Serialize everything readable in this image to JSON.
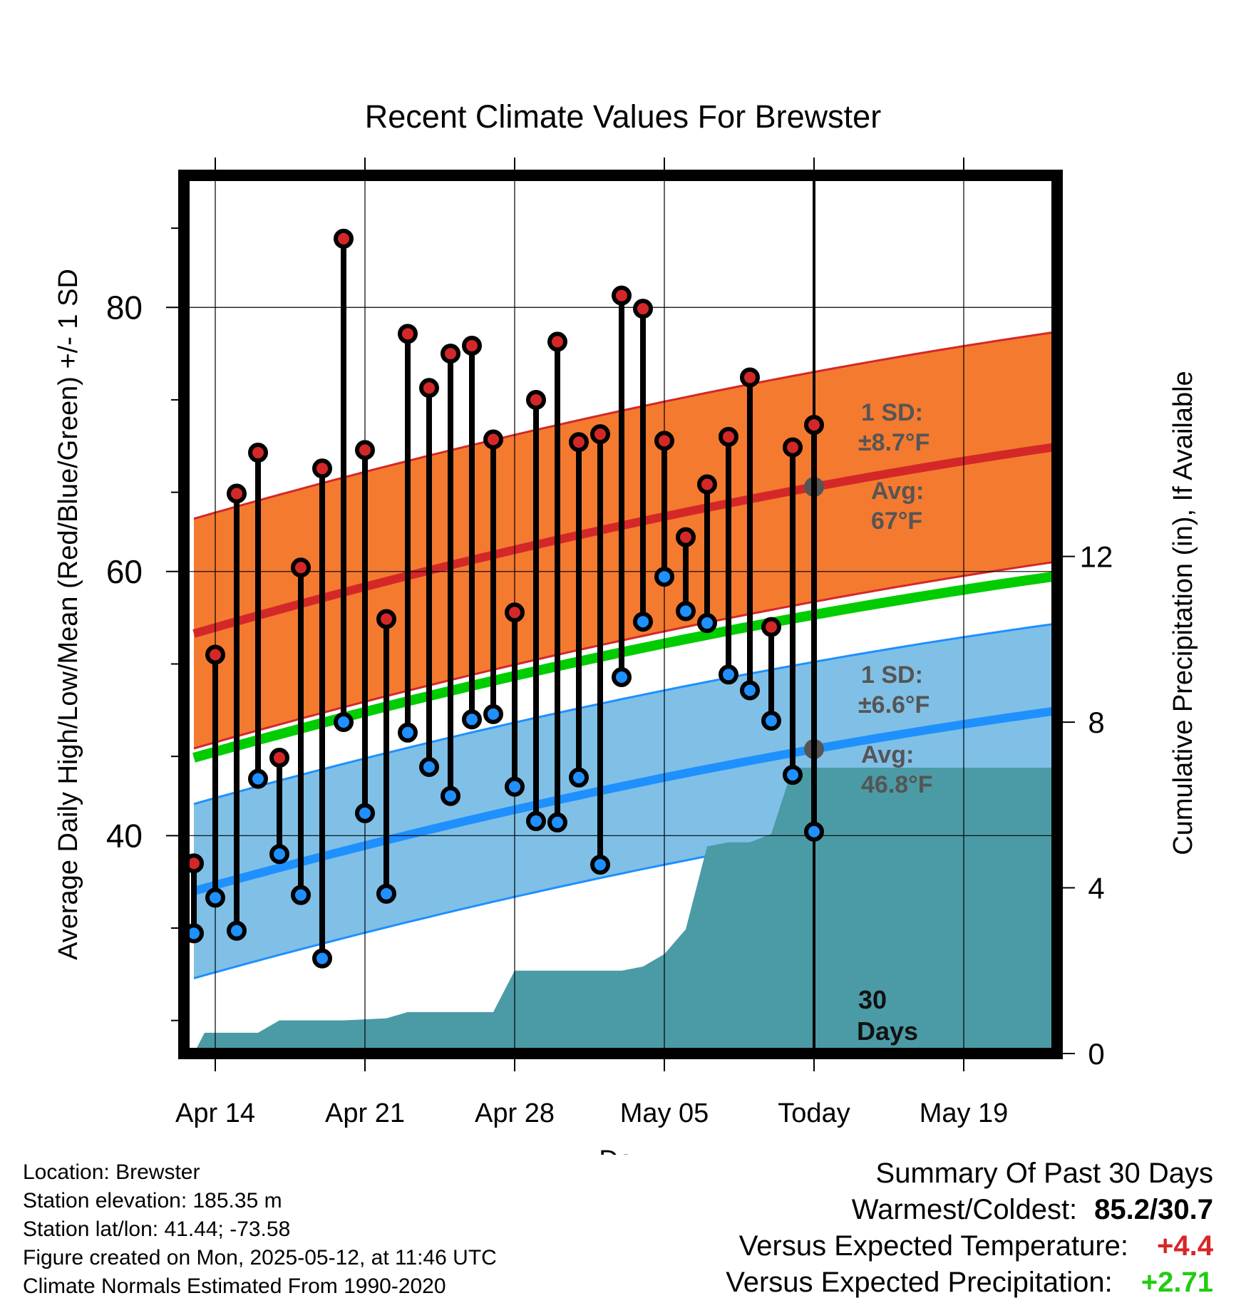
{
  "chart_data": {
    "type": "line",
    "title": "Recent Climate Values For Brewster",
    "xlabel": "Day",
    "ylabel": "Average Daily High/Low/Mean (Red/Blue/Green) +/- 1 SD",
    "y2label": "Cumulative Precipitation (in), If Available",
    "x_tick_labels": [
      "Apr 14",
      "Apr 21",
      "Apr 28",
      "May 05",
      "Today",
      "May 19"
    ],
    "y_ticks": [
      40,
      60,
      80
    ],
    "y2_ticks": [
      0,
      4,
      8,
      12
    ],
    "ylim": [
      23.5,
      90
    ],
    "y2lim": [
      0,
      21.2
    ],
    "x_range_days": [
      "Apr 11",
      "May 22"
    ],
    "today": "May 12",
    "grid": true,
    "colors": {
      "high_band": "#f47a30",
      "high_line": "#d42828",
      "low_band": "#80c0e6",
      "low_line": "#1e90ff",
      "mean_line": "#00cc00",
      "precip": "#4a9ba6",
      "high_marker": "#d42828",
      "low_marker": "#1e90ff"
    },
    "normals": {
      "high_avg": [
        [
          0,
          55.3
        ],
        [
          41,
          69.6
        ]
      ],
      "high_sd": 8.7,
      "low_avg": [
        [
          0,
          35.8
        ],
        [
          41,
          49.6
        ]
      ],
      "low_sd": 6.6,
      "mean_avg": [
        [
          0,
          45.9
        ],
        [
          41,
          59.8
        ]
      ]
    },
    "daily": [
      {
        "day": 1,
        "high": 37.9,
        "low": 32.6
      },
      {
        "day": 2,
        "high": 53.7,
        "low": 35.3
      },
      {
        "day": 3,
        "high": 65.9,
        "low": 32.8
      },
      {
        "day": 4,
        "high": 69.0,
        "low": 44.3
      },
      {
        "day": 5,
        "high": 45.9,
        "low": 38.6
      },
      {
        "day": 6,
        "high": 60.3,
        "low": 35.5
      },
      {
        "day": 7,
        "high": 67.8,
        "low": 30.7
      },
      {
        "day": 8,
        "high": 85.2,
        "low": 48.6
      },
      {
        "day": 9,
        "high": 69.2,
        "low": 41.7
      },
      {
        "day": 10,
        "high": 56.4,
        "low": 35.6
      },
      {
        "day": 11,
        "high": 78.0,
        "low": 47.8
      },
      {
        "day": 12,
        "high": 73.9,
        "low": 45.2
      },
      {
        "day": 13,
        "high": 76.5,
        "low": 43.0
      },
      {
        "day": 14,
        "high": 77.1,
        "low": 48.8
      },
      {
        "day": 15,
        "high": 70.0,
        "low": 49.2
      },
      {
        "day": 16,
        "high": 56.9,
        "low": 43.7
      },
      {
        "day": 17,
        "high": 73.0,
        "low": 41.1
      },
      {
        "day": 18,
        "high": 77.4,
        "low": 41.0
      },
      {
        "day": 19,
        "high": 69.8,
        "low": 44.4
      },
      {
        "day": 20,
        "high": 70.4,
        "low": 37.8
      },
      {
        "day": 21,
        "high": 80.9,
        "low": 52.0
      },
      {
        "day": 22,
        "high": 79.9,
        "low": 56.2
      },
      {
        "day": 23,
        "high": 69.9,
        "low": 59.6
      },
      {
        "day": 24,
        "high": 62.6,
        "low": 57.0
      },
      {
        "day": 25,
        "high": 66.6,
        "low": 56.1
      },
      {
        "day": 26,
        "high": 70.2,
        "low": 52.2
      },
      {
        "day": 27,
        "high": 74.7,
        "low": 51.0
      },
      {
        "day": 28,
        "high": 55.8,
        "low": 48.7
      },
      {
        "day": 29,
        "high": 69.4,
        "low": 44.6
      },
      {
        "day": 30,
        "high": 71.1,
        "low": 40.3
      }
    ],
    "precip_cumulative": [
      [
        0,
        0.0
      ],
      [
        0.5,
        0.5
      ],
      [
        3,
        0.5
      ],
      [
        4,
        0.8
      ],
      [
        7,
        0.8
      ],
      [
        9,
        0.85
      ],
      [
        10,
        1.0
      ],
      [
        14,
        1.0
      ],
      [
        15,
        2.0
      ],
      [
        20,
        2.0
      ],
      [
        21,
        2.1
      ],
      [
        22,
        2.4
      ],
      [
        23,
        3.0
      ],
      [
        24,
        5.0
      ],
      [
        25,
        5.1
      ],
      [
        26,
        5.1
      ],
      [
        27,
        5.3
      ],
      [
        28,
        6.9
      ],
      [
        41,
        6.9
      ]
    ],
    "annotations": {
      "high_sd": "1 SD:",
      "high_sd_value": "±8.7°F",
      "high_avg": "Avg:",
      "high_avg_value": "67°F",
      "low_sd": "1 SD:",
      "low_sd_value": "±6.6°F",
      "low_avg": "Avg:",
      "low_avg_value": "46.8°F",
      "days_number": "30",
      "days_word": "Days"
    }
  },
  "station_info": {
    "location": "Location: Brewster",
    "elevation": "Station elevation: 185.35 m",
    "latlon": "Station lat/lon: 41.44; -73.58",
    "created": "Figure created on Mon, 2025-05-12, at 11:46 UTC",
    "normals": "Climate Normals Estimated From 1990-2020"
  },
  "summary": {
    "title": "Summary Of Past 30 Days",
    "warmest_label": "Warmest/Coldest:",
    "warmest_value": "85.2/30.7",
    "temp_label": "Versus Expected Temperature:",
    "temp_value": "+4.4",
    "precip_label": "Versus Expected Precipitation:",
    "precip_value": "+2.71"
  }
}
